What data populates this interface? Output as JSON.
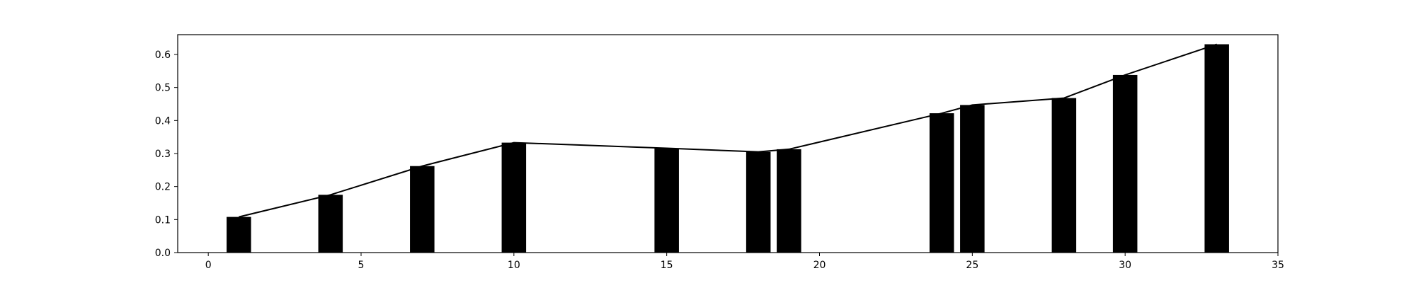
{
  "chart_data": {
    "type": "bar",
    "title": "",
    "xlabel": "",
    "ylabel": "",
    "xlim": [
      -1,
      35
    ],
    "ylim": [
      0,
      0.66
    ],
    "grid": false,
    "bar_width": 0.8,
    "bar_color": "#000000",
    "line_color": "#000000",
    "x_ticks": [
      0,
      5,
      10,
      15,
      20,
      25,
      30,
      35
    ],
    "y_ticks": [
      0.0,
      0.1,
      0.2,
      0.3,
      0.4,
      0.5,
      0.6
    ],
    "x_tick_labels": [
      "0",
      "5",
      "10",
      "15",
      "20",
      "25",
      "30",
      "35"
    ],
    "y_tick_labels": [
      "0.0",
      "0.1",
      "0.2",
      "0.3",
      "0.4",
      "0.5",
      "0.6"
    ],
    "series": [
      {
        "kind": "bar",
        "x": [
          1,
          4,
          7,
          10,
          15,
          18,
          19,
          24,
          25,
          28,
          30,
          33
        ],
        "values": [
          0.108,
          0.175,
          0.262,
          0.333,
          0.316,
          0.305,
          0.313,
          0.422,
          0.447,
          0.468,
          0.538,
          0.631
        ]
      },
      {
        "kind": "line",
        "x": [
          1,
          4,
          7,
          10,
          15,
          18,
          19,
          24,
          25,
          28,
          30,
          33
        ],
        "values": [
          0.108,
          0.175,
          0.262,
          0.333,
          0.316,
          0.305,
          0.313,
          0.422,
          0.447,
          0.468,
          0.538,
          0.631
        ]
      }
    ]
  }
}
